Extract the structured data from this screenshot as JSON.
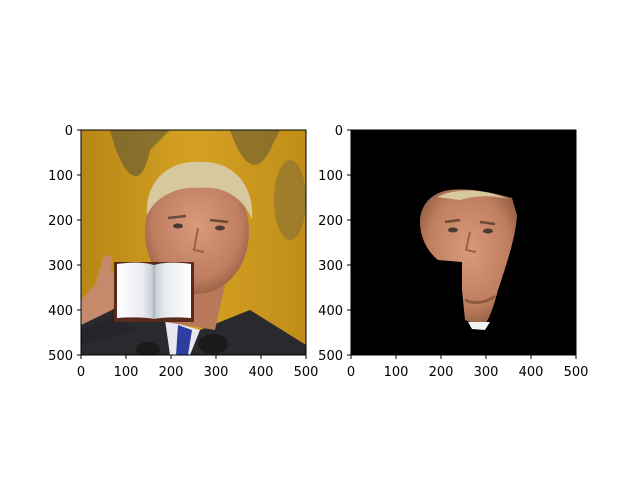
{
  "figure": {
    "panels": [
      {
        "name": "left-panel",
        "content": "Photo of a man in a suit speaking at a podium with microphones, pointing toward the viewer; an open book graphic overlays his mouth and chin area",
        "x_ticks": [
          "0",
          "100",
          "200",
          "300",
          "400",
          "500"
        ],
        "y_ticks": [
          "0",
          "100",
          "200",
          "300",
          "400",
          "500"
        ]
      },
      {
        "name": "right-panel",
        "content": "Segmentation mask showing only the man's face region on a black background",
        "x_ticks": [
          "0",
          "100",
          "200",
          "300",
          "400",
          "500"
        ],
        "y_ticks": [
          "0",
          "100",
          "200",
          "300",
          "400",
          "500"
        ]
      }
    ],
    "colors": {
      "background_gold": "#c9951c",
      "mask_background": "#000000",
      "skin": "#c98a6a",
      "suit": "#2a2a2e",
      "tie": "#2c3f9e"
    }
  }
}
